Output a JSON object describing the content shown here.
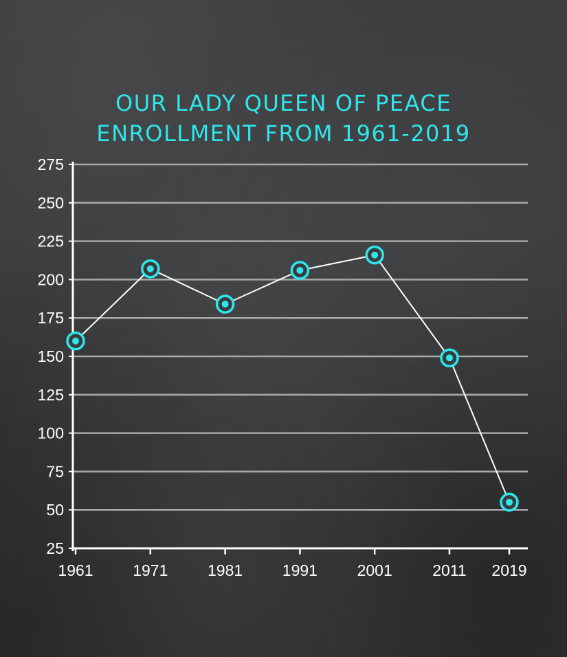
{
  "chart_data": {
    "type": "line",
    "title_lines": [
      "OUR LADY QUEEN OF PEACE",
      "ENROLLMENT FROM 1961-2019"
    ],
    "xlabel": "",
    "ylabel": "",
    "categories": [
      "1961",
      "1971",
      "1981",
      "1991",
      "2001",
      "2011",
      "2019"
    ],
    "series": [
      {
        "values": [
          160,
          207,
          184,
          206,
          216,
          149,
          55
        ]
      }
    ],
    "ylim": [
      25,
      275
    ],
    "yticks": [
      25,
      50,
      75,
      100,
      125,
      150,
      175,
      200,
      225,
      250,
      275
    ],
    "grid": true,
    "legend": "none"
  },
  "colors": {
    "accent": "#2ee6ec",
    "line": "#ffffff",
    "grid": "#a9a9ab",
    "background": "#38393b"
  }
}
